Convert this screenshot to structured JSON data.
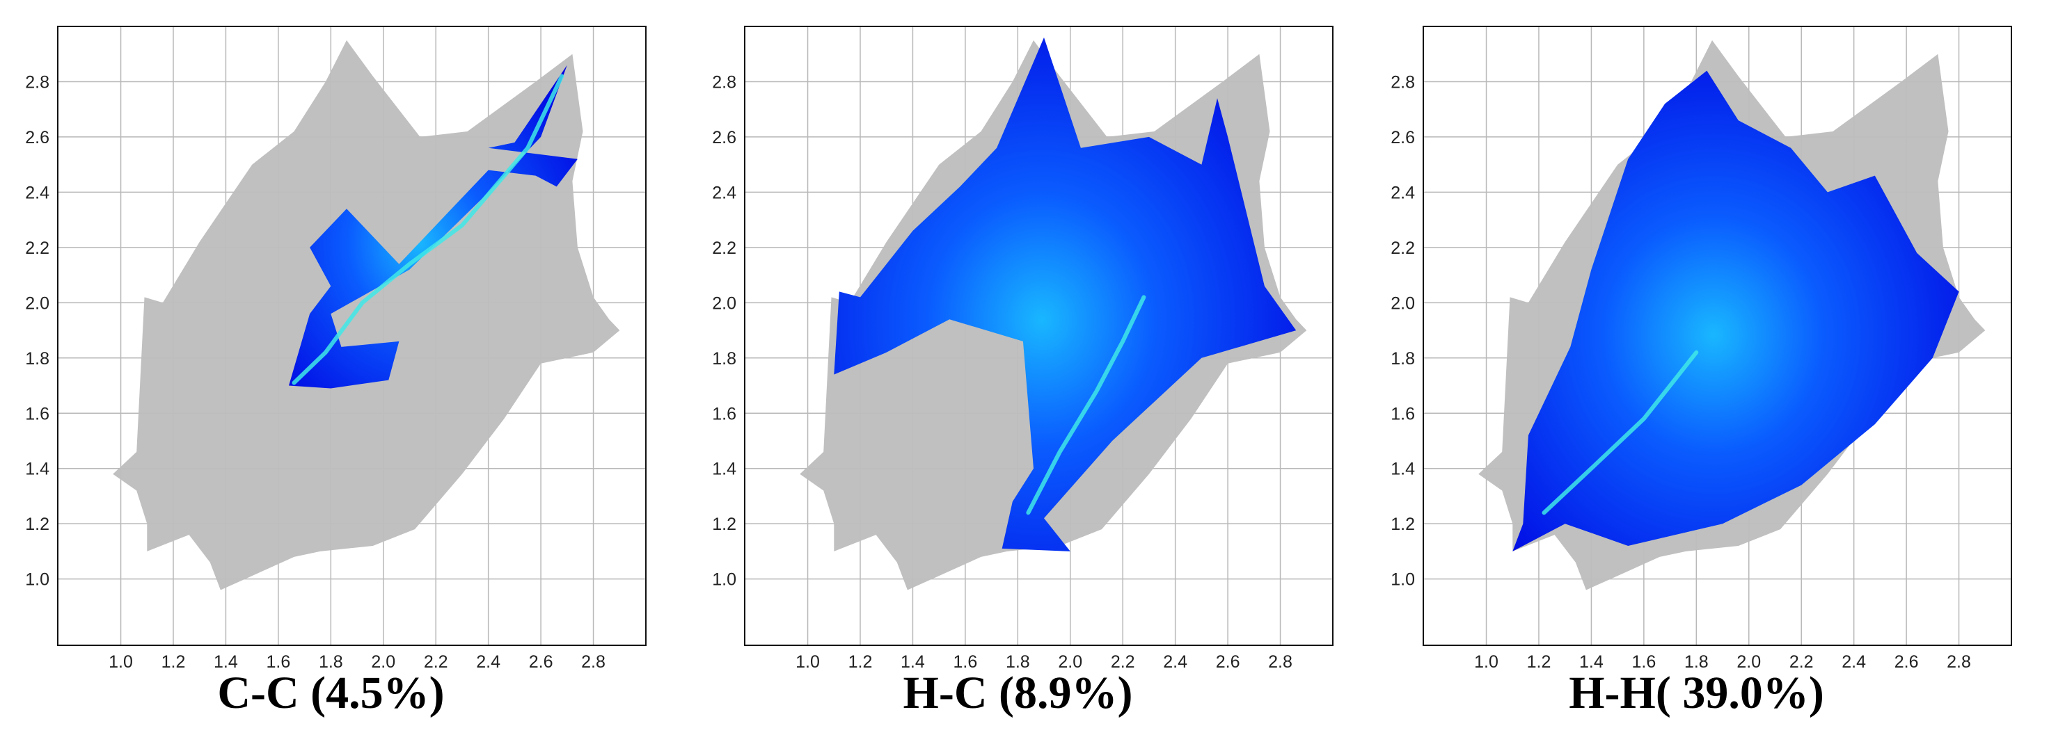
{
  "figure": {
    "panels": [
      {
        "title": "C-C (4.5%)"
      },
      {
        "title": "H-C (8.9%)"
      },
      {
        "title": "H-H( 39.0%)"
      }
    ]
  },
  "chart_data": [
    {
      "type": "heatmap",
      "subtype": "hirshfeld-fingerprint-plot",
      "title": "C-C (4.5%)",
      "xlabel": "",
      "ylabel": "",
      "xlim": [
        0.76,
        3.0
      ],
      "ylim": [
        0.76,
        3.0
      ],
      "x_ticks": [
        "1.0",
        "1.2",
        "1.4",
        "1.6",
        "1.8",
        "2.0",
        "2.2",
        "2.4",
        "2.6",
        "2.8"
      ],
      "y_ticks": [
        "1.0",
        "1.2",
        "1.4",
        "1.6",
        "1.8",
        "2.0",
        "2.2",
        "2.4",
        "2.6",
        "2.8"
      ],
      "grid": true,
      "full_plot_color": "#bdbdbd",
      "colormap": [
        "#0000e0",
        "#0a5cff",
        "#19b7ff",
        "#40e8e8"
      ],
      "highlight_outline": [
        [
          1.64,
          1.7
        ],
        [
          1.8,
          1.69
        ],
        [
          2.02,
          1.72
        ],
        [
          2.06,
          1.86
        ],
        [
          1.84,
          1.84
        ],
        [
          1.8,
          1.96
        ],
        [
          2.1,
          2.12
        ],
        [
          2.38,
          2.38
        ],
        [
          2.6,
          2.6
        ],
        [
          2.7,
          2.86
        ],
        [
          2.5,
          2.58
        ],
        [
          2.4,
          2.56
        ],
        [
          2.74,
          2.52
        ],
        [
          2.66,
          2.42
        ],
        [
          2.58,
          2.46
        ],
        [
          2.4,
          2.48
        ],
        [
          2.26,
          2.34
        ],
        [
          2.06,
          2.14
        ],
        [
          1.86,
          2.34
        ],
        [
          1.72,
          2.2
        ],
        [
          1.8,
          2.06
        ],
        [
          1.72,
          1.96
        ]
      ],
      "hot_line": [
        [
          1.66,
          1.71
        ],
        [
          1.78,
          1.82
        ],
        [
          1.92,
          2.0
        ],
        [
          2.1,
          2.14
        ],
        [
          2.3,
          2.28
        ],
        [
          2.55,
          2.56
        ],
        [
          2.68,
          2.82
        ]
      ]
    },
    {
      "type": "heatmap",
      "subtype": "hirshfeld-fingerprint-plot",
      "title": "H-C (8.9%)",
      "xlabel": "",
      "ylabel": "",
      "xlim": [
        0.76,
        3.0
      ],
      "ylim": [
        0.76,
        3.0
      ],
      "x_ticks": [
        "1.0",
        "1.2",
        "1.4",
        "1.6",
        "1.8",
        "2.0",
        "2.2",
        "2.4",
        "2.6",
        "2.8"
      ],
      "y_ticks": [
        "1.0",
        "1.2",
        "1.4",
        "1.6",
        "1.8",
        "2.0",
        "2.2",
        "2.4",
        "2.6",
        "2.8"
      ],
      "grid": true,
      "full_plot_color": "#bdbdbd",
      "colormap": [
        "#0000e0",
        "#0a5cff",
        "#19b7ff",
        "#40e8e8"
      ],
      "highlight_outline": [
        [
          1.74,
          1.11
        ],
        [
          2.0,
          1.1
        ],
        [
          1.9,
          1.22
        ],
        [
          2.16,
          1.5
        ],
        [
          2.5,
          1.8
        ],
        [
          2.86,
          1.9
        ],
        [
          2.74,
          2.06
        ],
        [
          2.6,
          2.6
        ],
        [
          2.56,
          2.74
        ],
        [
          2.5,
          2.5
        ],
        [
          2.3,
          2.6
        ],
        [
          2.04,
          2.56
        ],
        [
          1.9,
          2.96
        ],
        [
          1.72,
          2.56
        ],
        [
          1.58,
          2.42
        ],
        [
          1.4,
          2.26
        ],
        [
          1.2,
          2.02
        ],
        [
          1.12,
          2.04
        ],
        [
          1.1,
          1.74
        ],
        [
          1.3,
          1.82
        ],
        [
          1.54,
          1.94
        ],
        [
          1.82,
          1.86
        ],
        [
          1.86,
          1.4
        ],
        [
          1.78,
          1.28
        ]
      ],
      "hot_line": [
        [
          1.84,
          1.24
        ],
        [
          1.96,
          1.46
        ],
        [
          2.1,
          1.68
        ],
        [
          2.2,
          1.86
        ],
        [
          2.28,
          2.02
        ]
      ]
    },
    {
      "type": "heatmap",
      "subtype": "hirshfeld-fingerprint-plot",
      "title": "H-H( 39.0%)",
      "xlabel": "",
      "ylabel": "",
      "xlim": [
        0.76,
        3.0
      ],
      "ylim": [
        0.76,
        3.0
      ],
      "x_ticks": [
        "1.0",
        "1.2",
        "1.4",
        "1.6",
        "1.8",
        "2.0",
        "2.2",
        "2.4",
        "2.6",
        "2.8"
      ],
      "y_ticks": [
        "1.0",
        "1.2",
        "1.4",
        "1.6",
        "1.8",
        "2.0",
        "2.2",
        "2.4",
        "2.6",
        "2.8"
      ],
      "grid": true,
      "full_plot_color": "#bdbdbd",
      "colormap": [
        "#0000e0",
        "#0a5cff",
        "#19b7ff",
        "#40e8e8"
      ],
      "highlight_outline": [
        [
          1.1,
          1.1
        ],
        [
          1.3,
          1.2
        ],
        [
          1.54,
          1.12
        ],
        [
          1.9,
          1.2
        ],
        [
          2.2,
          1.34
        ],
        [
          2.48,
          1.56
        ],
        [
          2.7,
          1.8
        ],
        [
          2.8,
          2.04
        ],
        [
          2.64,
          2.18
        ],
        [
          2.48,
          2.46
        ],
        [
          2.3,
          2.4
        ],
        [
          2.16,
          2.56
        ],
        [
          1.96,
          2.66
        ],
        [
          1.84,
          2.84
        ],
        [
          1.68,
          2.72
        ],
        [
          1.54,
          2.52
        ],
        [
          1.4,
          2.12
        ],
        [
          1.32,
          1.84
        ],
        [
          1.16,
          1.52
        ],
        [
          1.14,
          1.2
        ]
      ],
      "hot_line": [
        [
          1.22,
          1.24
        ],
        [
          1.4,
          1.4
        ],
        [
          1.6,
          1.58
        ],
        [
          1.8,
          1.82
        ]
      ]
    }
  ],
  "background_region": [
    [
      0.97,
      1.38
    ],
    [
      1.06,
      1.46
    ],
    [
      1.09,
      2.02
    ],
    [
      1.16,
      2.0
    ],
    [
      1.3,
      2.22
    ],
    [
      1.5,
      2.5
    ],
    [
      1.66,
      2.62
    ],
    [
      1.78,
      2.8
    ],
    [
      1.86,
      2.95
    ],
    [
      1.96,
      2.82
    ],
    [
      2.14,
      2.6
    ],
    [
      2.32,
      2.62
    ],
    [
      2.58,
      2.8
    ],
    [
      2.72,
      2.9
    ],
    [
      2.76,
      2.62
    ],
    [
      2.72,
      2.44
    ],
    [
      2.74,
      2.2
    ],
    [
      2.8,
      2.02
    ],
    [
      2.86,
      1.94
    ],
    [
      2.9,
      1.9
    ],
    [
      2.8,
      1.82
    ],
    [
      2.6,
      1.78
    ],
    [
      2.46,
      1.58
    ],
    [
      2.3,
      1.38
    ],
    [
      2.12,
      1.18
    ],
    [
      1.96,
      1.12
    ],
    [
      1.76,
      1.1
    ],
    [
      1.66,
      1.08
    ],
    [
      1.52,
      1.02
    ],
    [
      1.38,
      0.96
    ],
    [
      1.34,
      1.06
    ],
    [
      1.26,
      1.16
    ],
    [
      1.1,
      1.1
    ],
    [
      1.1,
      1.2
    ],
    [
      1.06,
      1.32
    ]
  ]
}
